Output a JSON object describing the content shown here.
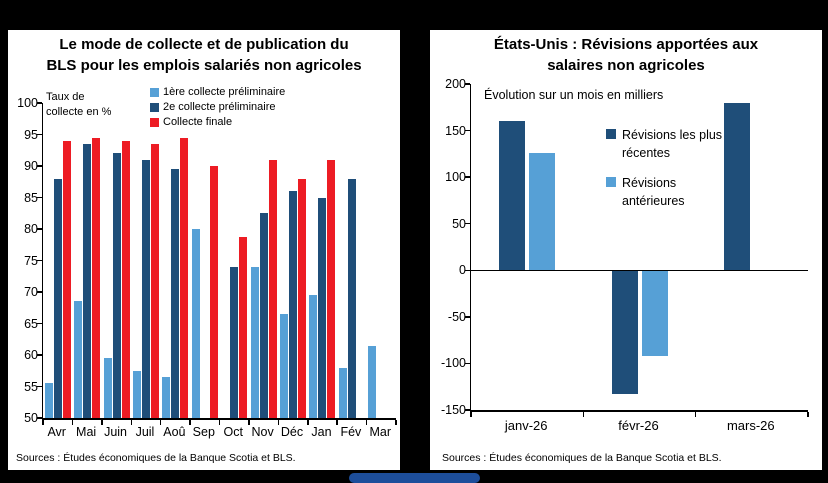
{
  "chart_data": [
    {
      "type": "bar",
      "title": "Le mode de collecte et de publication du BLS pour les emplois salariés non agricoles",
      "title_lines": [
        "Le mode de collecte et de publication du",
        "BLS pour les emplois salariés non agricoles"
      ],
      "ylabel": "Taux de collecte en %",
      "axis_note_lines": [
        "Taux de",
        "collecte en %"
      ],
      "xlabel": "",
      "categories": [
        "Avr",
        "Mai",
        "Juin",
        "Juil",
        "Aoû",
        "Sep",
        "Oct",
        "Nov",
        "Déc",
        "Jan",
        "Fév",
        "Mar"
      ],
      "series": [
        {
          "name": "1ère collecte préliminaire",
          "color": "#56A0D6",
          "values": [
            55.5,
            68.5,
            59.5,
            57.5,
            56.5,
            80,
            null,
            74,
            66.5,
            69.5,
            58,
            61.5
          ]
        },
        {
          "name": "2e collecte préliminaire",
          "color": "#1F4E79",
          "values": [
            88,
            93.5,
            92,
            91,
            89.5,
            null,
            74,
            82.5,
            86,
            85,
            88,
            null
          ]
        },
        {
          "name": "Collecte finale",
          "color": "#ED1C24",
          "values": [
            94,
            94.5,
            94,
            93.5,
            94.5,
            90,
            78.7,
            91,
            88,
            91,
            null,
            null
          ]
        }
      ],
      "ylim": [
        50,
        100
      ],
      "yticks": [
        100,
        95,
        90,
        85,
        80,
        75,
        70,
        65,
        60,
        55,
        50
      ],
      "grid": false,
      "legend_position": "upper-right",
      "source": "Sources : Études économiques de la Banque Scotia et BLS."
    },
    {
      "type": "bar",
      "title": "États-Unis : Révisions apportées aux salaires non agricoles",
      "title_lines": [
        "États-Unis : Révisions apportées aux",
        "salaires non agricoles"
      ],
      "subtitle": "Évolution sur un mois en milliers",
      "xlabel": "",
      "ylabel": "",
      "categories": [
        "janv-26",
        "févr-26",
        "mars-26"
      ],
      "series": [
        {
          "name": "Révisions les plus récentes",
          "color": "#1F4E79",
          "values": [
            160,
            -133,
            180
          ]
        },
        {
          "name": "Révisions antérieures",
          "color": "#56A0D6",
          "values": [
            126,
            -92,
            null
          ]
        }
      ],
      "ylim": [
        -150,
        200
      ],
      "yticks": [
        200,
        150,
        100,
        50,
        0,
        -50,
        -100,
        -150
      ],
      "grid": false,
      "legend_position": "right",
      "source": "Sources : Études économiques de la Banque Scotia et BLS."
    }
  ],
  "footer": {
    "accent_color": "#1D4E9B"
  }
}
